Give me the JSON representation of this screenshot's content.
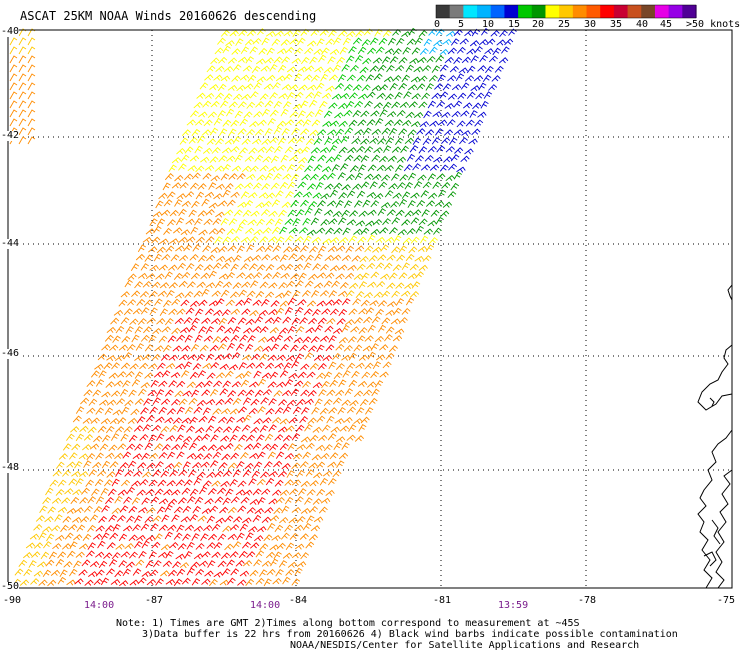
{
  "title": "ASCAT 25KM NOAA Winds 20160626 descending",
  "legend": {
    "colors": [
      "#3a3a3a",
      "#7a7a7a",
      "#00e6ff",
      "#00b4ff",
      "#0064ff",
      "#0000d2",
      "#00c800",
      "#009600",
      "#ffff00",
      "#ffc800",
      "#ff8c00",
      "#ff5a00",
      "#ff0000",
      "#c80032",
      "#c8501e",
      "#784628",
      "#e600e6",
      "#9600e6",
      "#500096"
    ],
    "labels": [
      "0",
      "5",
      "10",
      "15",
      "20",
      "25",
      "30",
      "35",
      "40",
      "45",
      ">50 knots"
    ]
  },
  "lat_labels": [
    "-40",
    "-42",
    "-44",
    "-46",
    "-48",
    "-50"
  ],
  "lon_labels": [
    "-90",
    "-87",
    "-84",
    "-81",
    "-78",
    "-75"
  ],
  "time_labels": [
    "14:00",
    "14:00",
    "13:59"
  ],
  "notes": [
    "Note: 1) Times are GMT 2)Times along bottom correspond to measurement at ~45S",
    "3)Data buffer is 22 hrs from 20160626 4) Black wind barbs indicate possible contamination",
    "NOAA/NESDIS/Center for Satellite Applications and Research"
  ]
}
